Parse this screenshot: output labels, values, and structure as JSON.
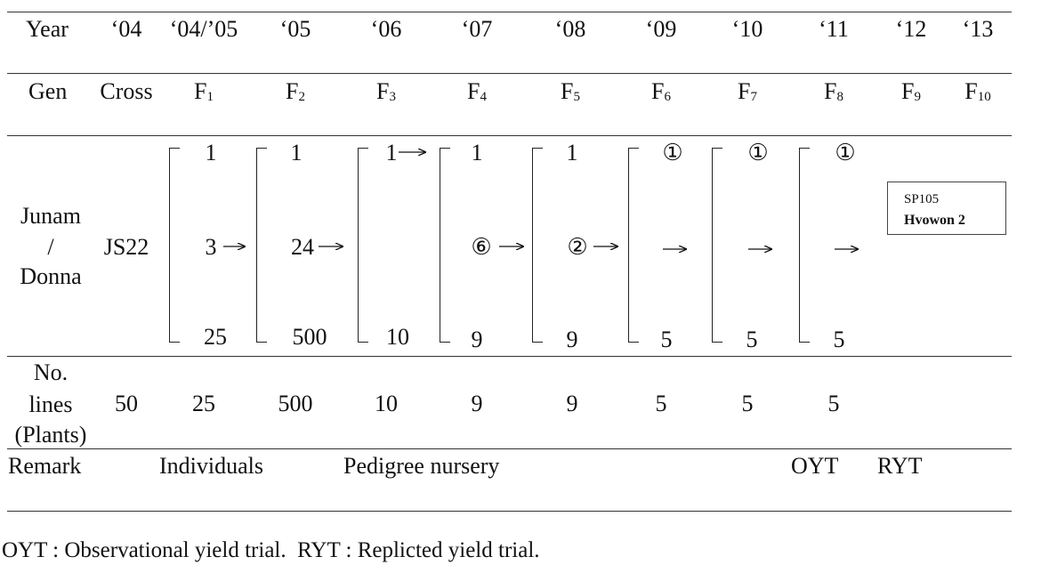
{
  "header": {
    "year_label": "Year",
    "years": [
      "‘04",
      "‘04/’05",
      "‘05",
      "‘06",
      "‘07",
      "‘08",
      "‘09",
      "‘10",
      "‘11",
      "‘12",
      "‘13"
    ],
    "gen_label": "Gen",
    "cross_label": "Cross",
    "gen_prefix": "F",
    "generations": [
      "1",
      "2",
      "3",
      "4",
      "5",
      "6",
      "7",
      "8",
      "9",
      "10"
    ]
  },
  "selection": {
    "row_label": [
      "Junam",
      "/",
      "Donna"
    ],
    "cross_name": "JS22",
    "stages": [
      {
        "top": "1",
        "selected": "3",
        "bottom": "25"
      },
      {
        "top": "1",
        "selected": "24",
        "bottom": "500"
      },
      {
        "top": "1",
        "selected": "",
        "bottom": "10"
      },
      {
        "top": "1",
        "selected": "⑥",
        "bottom": "9"
      },
      {
        "top": "1",
        "selected": "②",
        "bottom": "9"
      },
      {
        "top": "①",
        "selected": "",
        "bottom": "5"
      },
      {
        "top": "①",
        "selected": "",
        "bottom": "5"
      },
      {
        "top": "①",
        "selected": "",
        "bottom": "5"
      }
    ],
    "result_code": "SP105",
    "result_name": "Hvowon 2"
  },
  "lines": {
    "label": [
      "No.",
      "lines",
      "(Plants)"
    ],
    "values": [
      "50",
      "25",
      "500",
      "10",
      "9",
      "9",
      "5",
      "5",
      "5"
    ]
  },
  "remark": {
    "label": "Remark",
    "individuals": "Individuals",
    "pedigree": "Pedigree nursery",
    "oyt": "OYT",
    "ryt": "RYT"
  },
  "footnote": "OYT : Observational yield trial.  RYT : Replicted yield trial."
}
